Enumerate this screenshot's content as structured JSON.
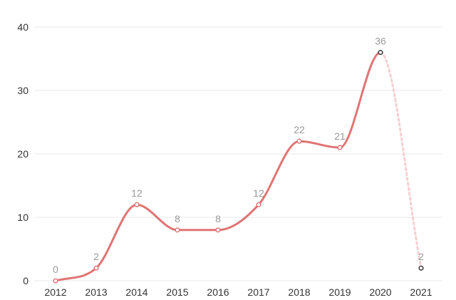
{
  "chart_data": {
    "type": "line",
    "categories": [
      "2012",
      "2013",
      "2014",
      "2015",
      "2016",
      "2017",
      "2018",
      "2019",
      "2020",
      "2021"
    ],
    "values": [
      0,
      2,
      12,
      8,
      8,
      12,
      22,
      21,
      36,
      2
    ],
    "title": "",
    "xlabel": "",
    "ylabel": "",
    "ylim": [
      0,
      40
    ],
    "yticks": [
      0,
      10,
      20,
      30,
      40
    ],
    "grid": "horizontal",
    "legend": "none",
    "smooth": true,
    "dashed_last_segment": true,
    "colors": {
      "line": "#e07474",
      "projection": "#f6cfcf",
      "marker_fill": "#ffffff",
      "projection_marker_stroke": "#333333"
    }
  }
}
